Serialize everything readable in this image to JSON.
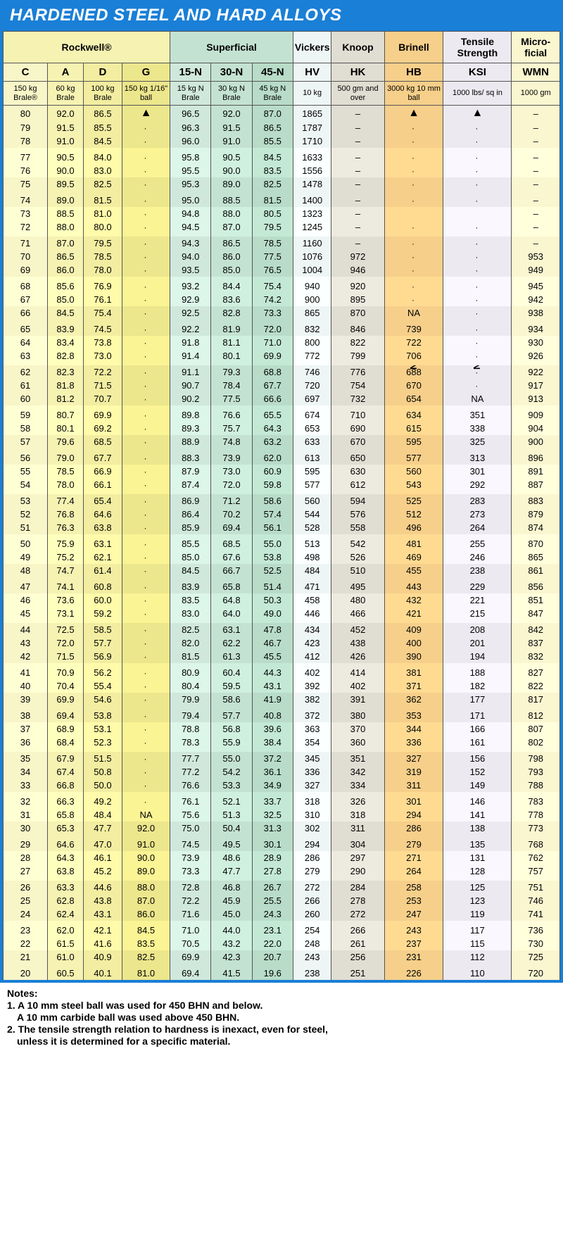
{
  "title": "HARDENED STEEL AND HARD ALLOYS",
  "groups": [
    "Rockwell®",
    "Superficial",
    "Vickers",
    "Knoop",
    "Brinell",
    "Tensile Strength",
    "Micro-ficial"
  ],
  "scales": [
    "C",
    "A",
    "D",
    "G",
    "15-N",
    "30-N",
    "45-N",
    "HV",
    "HK",
    "HB",
    "KSI",
    "WMN"
  ],
  "loads": [
    "150 kg Brale®",
    "60 kg Brale",
    "100 kg Brale",
    "150 kg 1/16\" ball",
    "15 kg N Brale",
    "30 kg N Brale",
    "45 kg N Brale",
    "10 kg",
    "500 gm and over",
    "3000 kg 10 mm ball",
    "1000 lbs/ sq in",
    "1000 gm"
  ],
  "note_labels": {
    "hb": "NOTE 1",
    "ksi": "NOTE 2",
    "na": "NA"
  },
  "notes": {
    "head": "Notes:",
    "l1": "1. A 10 mm steel ball was used for 450 BHN and below.",
    "l2": "   A 10 mm carbide ball was used above 450 BHN.",
    "l3": "2. The tensile strength relation to hardness is inexact, even for steel,",
    "l4": "   unless it is determined for a specific material."
  },
  "rows": [
    [
      "80",
      "92.0",
      "86.5",
      "",
      "96.5",
      "92.0",
      "87.0",
      "1865",
      "–",
      "",
      "",
      "–"
    ],
    [
      "79",
      "91.5",
      "85.5",
      "",
      "96.3",
      "91.5",
      "86.5",
      "1787",
      "–",
      "",
      "",
      "–"
    ],
    [
      "78",
      "91.0",
      "84.5",
      "",
      "96.0",
      "91.0",
      "85.5",
      "1710",
      "–",
      "",
      "",
      "–"
    ],
    [
      "77",
      "90.5",
      "84.0",
      "",
      "95.8",
      "90.5",
      "84.5",
      "1633",
      "–",
      "",
      "",
      "–"
    ],
    [
      "76",
      "90.0",
      "83.0",
      "",
      "95.5",
      "90.0",
      "83.5",
      "1556",
      "–",
      "",
      "",
      "–"
    ],
    [
      "75",
      "89.5",
      "82.5",
      "",
      "95.3",
      "89.0",
      "82.5",
      "1478",
      "–",
      "",
      "",
      "–"
    ],
    [
      "74",
      "89.0",
      "81.5",
      "",
      "95.0",
      "88.5",
      "81.5",
      "1400",
      "–",
      "",
      "",
      "–"
    ],
    [
      "73",
      "88.5",
      "81.0",
      "",
      "94.8",
      "88.0",
      "80.5",
      "1323",
      "–",
      "",
      "",
      "–"
    ],
    [
      "72",
      "88.0",
      "80.0",
      "",
      "94.5",
      "87.0",
      "79.5",
      "1245",
      "–",
      "",
      "",
      "–"
    ],
    [
      "71",
      "87.0",
      "79.5",
      "",
      "94.3",
      "86.5",
      "78.5",
      "1160",
      "–",
      "",
      "",
      "–"
    ],
    [
      "70",
      "86.5",
      "78.5",
      "",
      "94.0",
      "86.0",
      "77.5",
      "1076",
      "972",
      "",
      "",
      "953"
    ],
    [
      "69",
      "86.0",
      "78.0",
      "",
      "93.5",
      "85.0",
      "76.5",
      "1004",
      "946",
      "",
      "",
      "949"
    ],
    [
      "68",
      "85.6",
      "76.9",
      "",
      "93.2",
      "84.4",
      "75.4",
      "940",
      "920",
      "",
      "",
      "945"
    ],
    [
      "67",
      "85.0",
      "76.1",
      "",
      "92.9",
      "83.6",
      "74.2",
      "900",
      "895",
      "",
      "",
      "942"
    ],
    [
      "66",
      "84.5",
      "75.4",
      "",
      "92.5",
      "82.8",
      "73.3",
      "865",
      "870",
      "NA",
      "",
      "938"
    ],
    [
      "65",
      "83.9",
      "74.5",
      "",
      "92.2",
      "81.9",
      "72.0",
      "832",
      "846",
      "739",
      "",
      "934"
    ],
    [
      "64",
      "83.4",
      "73.8",
      "",
      "91.8",
      "81.1",
      "71.0",
      "800",
      "822",
      "722",
      "",
      "930"
    ],
    [
      "63",
      "82.8",
      "73.0",
      "",
      "91.4",
      "80.1",
      "69.9",
      "772",
      "799",
      "706",
      "",
      "926"
    ],
    [
      "62",
      "82.3",
      "72.2",
      "",
      "91.1",
      "79.3",
      "68.8",
      "746",
      "776",
      "688",
      "",
      "922"
    ],
    [
      "61",
      "81.8",
      "71.5",
      "",
      "90.7",
      "78.4",
      "67.7",
      "720",
      "754",
      "670",
      "",
      "917"
    ],
    [
      "60",
      "81.2",
      "70.7",
      "",
      "90.2",
      "77.5",
      "66.6",
      "697",
      "732",
      "654",
      "NA",
      "913"
    ],
    [
      "59",
      "80.7",
      "69.9",
      "",
      "89.8",
      "76.6",
      "65.5",
      "674",
      "710",
      "634",
      "351",
      "909"
    ],
    [
      "58",
      "80.1",
      "69.2",
      "",
      "89.3",
      "75.7",
      "64.3",
      "653",
      "690",
      "615",
      "338",
      "904"
    ],
    [
      "57",
      "79.6",
      "68.5",
      "",
      "88.9",
      "74.8",
      "63.2",
      "633",
      "670",
      "595",
      "325",
      "900"
    ],
    [
      "56",
      "79.0",
      "67.7",
      "",
      "88.3",
      "73.9",
      "62.0",
      "613",
      "650",
      "577",
      "313",
      "896"
    ],
    [
      "55",
      "78.5",
      "66.9",
      "",
      "87.9",
      "73.0",
      "60.9",
      "595",
      "630",
      "560",
      "301",
      "891"
    ],
    [
      "54",
      "78.0",
      "66.1",
      "",
      "87.4",
      "72.0",
      "59.8",
      "577",
      "612",
      "543",
      "292",
      "887"
    ],
    [
      "53",
      "77.4",
      "65.4",
      "",
      "86.9",
      "71.2",
      "58.6",
      "560",
      "594",
      "525",
      "283",
      "883"
    ],
    [
      "52",
      "76.8",
      "64.6",
      "",
      "86.4",
      "70.2",
      "57.4",
      "544",
      "576",
      "512",
      "273",
      "879"
    ],
    [
      "51",
      "76.3",
      "63.8",
      "",
      "85.9",
      "69.4",
      "56.1",
      "528",
      "558",
      "496",
      "264",
      "874"
    ],
    [
      "50",
      "75.9",
      "63.1",
      "",
      "85.5",
      "68.5",
      "55.0",
      "513",
      "542",
      "481",
      "255",
      "870"
    ],
    [
      "49",
      "75.2",
      "62.1",
      "",
      "85.0",
      "67.6",
      "53.8",
      "498",
      "526",
      "469",
      "246",
      "865"
    ],
    [
      "48",
      "74.7",
      "61.4",
      "",
      "84.5",
      "66.7",
      "52.5",
      "484",
      "510",
      "455",
      "238",
      "861"
    ],
    [
      "47",
      "74.1",
      "60.8",
      "",
      "83.9",
      "65.8",
      "51.4",
      "471",
      "495",
      "443",
      "229",
      "856"
    ],
    [
      "46",
      "73.6",
      "60.0",
      "",
      "83.5",
      "64.8",
      "50.3",
      "458",
      "480",
      "432",
      "221",
      "851"
    ],
    [
      "45",
      "73.1",
      "59.2",
      "",
      "83.0",
      "64.0",
      "49.0",
      "446",
      "466",
      "421",
      "215",
      "847"
    ],
    [
      "44",
      "72.5",
      "58.5",
      "",
      "82.5",
      "63.1",
      "47.8",
      "434",
      "452",
      "409",
      "208",
      "842"
    ],
    [
      "43",
      "72.0",
      "57.7",
      "",
      "82.0",
      "62.2",
      "46.7",
      "423",
      "438",
      "400",
      "201",
      "837"
    ],
    [
      "42",
      "71.5",
      "56.9",
      "",
      "81.5",
      "61.3",
      "45.5",
      "412",
      "426",
      "390",
      "194",
      "832"
    ],
    [
      "41",
      "70.9",
      "56.2",
      "",
      "80.9",
      "60.4",
      "44.3",
      "402",
      "414",
      "381",
      "188",
      "827"
    ],
    [
      "40",
      "70.4",
      "55.4",
      "",
      "80.4",
      "59.5",
      "43.1",
      "392",
      "402",
      "371",
      "182",
      "822"
    ],
    [
      "39",
      "69.9",
      "54.6",
      "",
      "79.9",
      "58.6",
      "41.9",
      "382",
      "391",
      "362",
      "177",
      "817"
    ],
    [
      "38",
      "69.4",
      "53.8",
      "",
      "79.4",
      "57.7",
      "40.8",
      "372",
      "380",
      "353",
      "171",
      "812"
    ],
    [
      "37",
      "68.9",
      "53.1",
      "",
      "78.8",
      "56.8",
      "39.6",
      "363",
      "370",
      "344",
      "166",
      "807"
    ],
    [
      "36",
      "68.4",
      "52.3",
      "",
      "78.3",
      "55.9",
      "38.4",
      "354",
      "360",
      "336",
      "161",
      "802"
    ],
    [
      "35",
      "67.9",
      "51.5",
      "",
      "77.7",
      "55.0",
      "37.2",
      "345",
      "351",
      "327",
      "156",
      "798"
    ],
    [
      "34",
      "67.4",
      "50.8",
      "",
      "77.2",
      "54.2",
      "36.1",
      "336",
      "342",
      "319",
      "152",
      "793"
    ],
    [
      "33",
      "66.8",
      "50.0",
      "",
      "76.6",
      "53.3",
      "34.9",
      "327",
      "334",
      "311",
      "149",
      "788"
    ],
    [
      "32",
      "66.3",
      "49.2",
      "",
      "76.1",
      "52.1",
      "33.7",
      "318",
      "326",
      "301",
      "146",
      "783"
    ],
    [
      "31",
      "65.8",
      "48.4",
      "NA",
      "75.6",
      "51.3",
      "32.5",
      "310",
      "318",
      "294",
      "141",
      "778"
    ],
    [
      "30",
      "65.3",
      "47.7",
      "92.0",
      "75.0",
      "50.4",
      "31.3",
      "302",
      "311",
      "286",
      "138",
      "773"
    ],
    [
      "29",
      "64.6",
      "47.0",
      "91.0",
      "74.5",
      "49.5",
      "30.1",
      "294",
      "304",
      "279",
      "135",
      "768"
    ],
    [
      "28",
      "64.3",
      "46.1",
      "90.0",
      "73.9",
      "48.6",
      "28.9",
      "286",
      "297",
      "271",
      "131",
      "762"
    ],
    [
      "27",
      "63.8",
      "45.2",
      "89.0",
      "73.3",
      "47.7",
      "27.8",
      "279",
      "290",
      "264",
      "128",
      "757"
    ],
    [
      "26",
      "63.3",
      "44.6",
      "88.0",
      "72.8",
      "46.8",
      "26.7",
      "272",
      "284",
      "258",
      "125",
      "751"
    ],
    [
      "25",
      "62.8",
      "43.8",
      "87.0",
      "72.2",
      "45.9",
      "25.5",
      "266",
      "278",
      "253",
      "123",
      "746"
    ],
    [
      "24",
      "62.4",
      "43.1",
      "86.0",
      "71.6",
      "45.0",
      "24.3",
      "260",
      "272",
      "247",
      "119",
      "741"
    ],
    [
      "23",
      "62.0",
      "42.1",
      "84.5",
      "71.0",
      "44.0",
      "23.1",
      "254",
      "266",
      "243",
      "117",
      "736"
    ],
    [
      "22",
      "61.5",
      "41.6",
      "83.5",
      "70.5",
      "43.2",
      "22.0",
      "248",
      "261",
      "237",
      "115",
      "730"
    ],
    [
      "21",
      "61.0",
      "40.9",
      "82.5",
      "69.9",
      "42.3",
      "20.7",
      "243",
      "256",
      "231",
      "112",
      "725"
    ],
    [
      "20",
      "60.5",
      "40.1",
      "81.0",
      "69.4",
      "41.5",
      "19.6",
      "238",
      "251",
      "226",
      "110",
      "720"
    ]
  ]
}
